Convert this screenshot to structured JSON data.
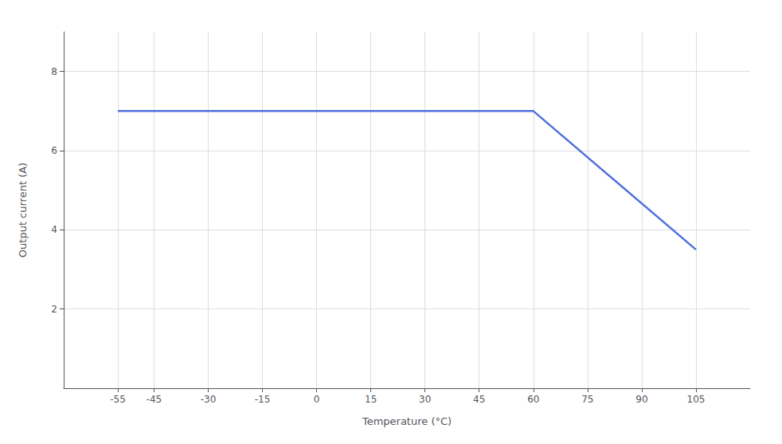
{
  "chart_data": {
    "type": "line",
    "xlabel": "Temperature (°C)",
    "ylabel": "Output current (A)",
    "x": [
      -55,
      60,
      105
    ],
    "values": [
      7,
      7,
      3.5
    ],
    "xlim": [
      -70,
      120
    ],
    "xticks": [
      -55,
      -45,
      -30,
      -15,
      0,
      15,
      30,
      45,
      60,
      75,
      90,
      105
    ],
    "ylim": [
      0,
      9
    ],
    "yticks": [
      2,
      4,
      6,
      8
    ],
    "grid": true
  }
}
